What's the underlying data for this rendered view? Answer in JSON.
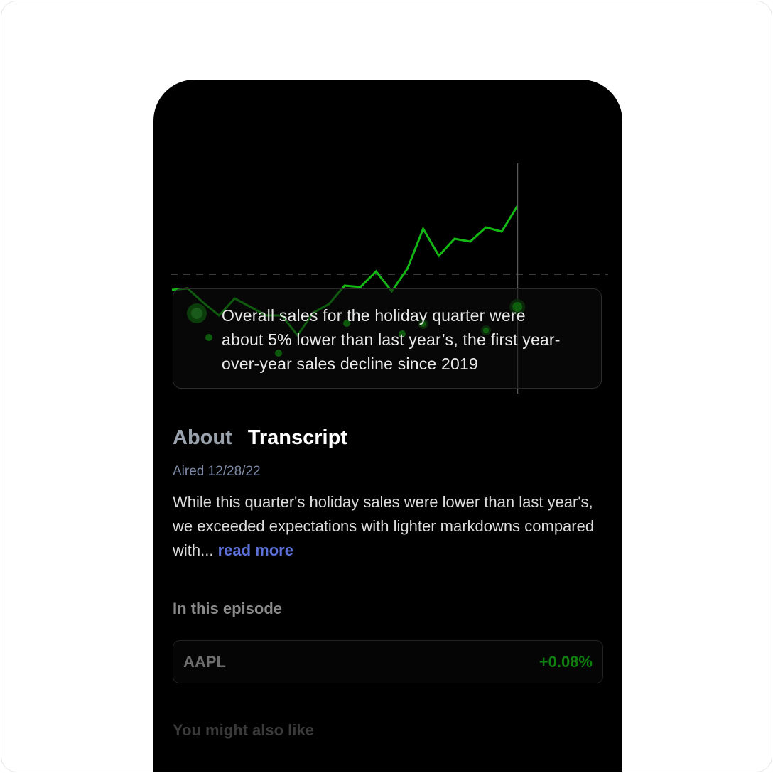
{
  "quote": {
    "line1": "Overall sales for the holiday quarter were",
    "line2": "about 5% lower than last year’s, the first year-",
    "line3": "over-year sales decline since 2019"
  },
  "tabs": [
    {
      "label": "About"
    },
    {
      "label": "Transcript"
    }
  ],
  "aired": "Aired 12/28/22",
  "description": {
    "text": "While this quarter's holiday sales were lower than last year's, we exceeded expectations with lighter markdowns compared with...",
    "read_more": "read more"
  },
  "episode": {
    "heading": "In this episode",
    "ticker": "AAPL",
    "change": "+0.08%"
  },
  "also_like": {
    "heading": "You might also like"
  },
  "colors": {
    "line": "#14b814",
    "accent_blue": "#5b6fd6",
    "positive": "#0f7f0f"
  },
  "chart_data": {
    "type": "line",
    "x": [
      0,
      1,
      2,
      3,
      4,
      5,
      6,
      7,
      8,
      9,
      10,
      11,
      12,
      13,
      14,
      15,
      16,
      17,
      18,
      19,
      20,
      21,
      22
    ],
    "values": [
      48,
      50,
      30,
      12,
      36,
      24,
      12,
      12,
      -16,
      16,
      28,
      54,
      52,
      74,
      46,
      78,
      134,
      96,
      120,
      116,
      136,
      130,
      166
    ],
    "baseline": 70,
    "grid": false,
    "markers": [
      {
        "x": 22,
        "y": 24,
        "size": "large"
      },
      {
        "x": 16,
        "y": 0,
        "size": "small"
      },
      {
        "x": 20,
        "y": -9,
        "size": "small"
      }
    ],
    "cursor_x": 22
  }
}
